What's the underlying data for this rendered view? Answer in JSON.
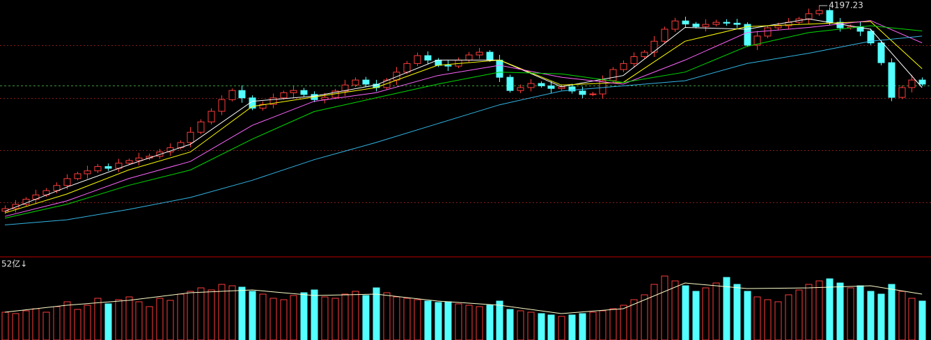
{
  "chart_data": {
    "type": "candlestick",
    "open": [
      3000,
      3015,
      3040,
      3070,
      3095,
      3120,
      3150,
      3190,
      3218,
      3235,
      3260,
      3250,
      3280,
      3295,
      3310,
      3320,
      3345,
      3370,
      3400,
      3460,
      3520,
      3582,
      3650,
      3703,
      3660,
      3600,
      3622,
      3660,
      3690,
      3703,
      3680,
      3650,
      3663,
      3700,
      3735,
      3764,
      3740,
      3720,
      3764,
      3810,
      3860,
      3906,
      3880,
      3850,
      3845,
      3880,
      3910,
      3926,
      3880,
      3780,
      3703,
      3720,
      3744,
      3730,
      3715,
      3724,
      3700,
      3680,
      3683,
      3760,
      3825,
      3860,
      3900,
      3926,
      3990,
      4060,
      4108,
      4090,
      4075,
      4088,
      4100,
      4095,
      4088,
      3967,
      4020,
      4068,
      4080,
      4100,
      4120,
      4150,
      4169,
      4100,
      4068,
      4075,
      4048,
      3980,
      3865,
      3663,
      3720,
      3764
    ],
    "high": [
      3033,
      3065,
      3082,
      3125,
      3135,
      3168,
      3215,
      3230,
      3265,
      3275,
      3278,
      3305,
      3307,
      3340,
      3335,
      3363,
      3395,
      3412,
      3490,
      3535,
      3600,
      3675,
      3715,
      3733,
      3675,
      3640,
      3685,
      3702,
      3733,
      3718,
      3698,
      3688,
      3712,
      3765,
      3779,
      3782,
      3765,
      3776,
      3840,
      3875,
      3924,
      3931,
      3892,
      3880,
      3895,
      3928,
      3951,
      3938,
      3910,
      3795,
      3738,
      3769,
      3756,
      3760,
      3739,
      3742,
      3725,
      3695,
      3790,
      3840,
      3878,
      3925,
      3938,
      4020,
      4075,
      4126,
      4133,
      4102,
      4118,
      4115,
      4118,
      4120,
      4100,
      4050,
      4083,
      4098,
      4125,
      4132,
      4180,
      4197.23,
      4187,
      4125,
      4087,
      4105,
      4063,
      3998,
      3890,
      3732,
      3794,
      3779
    ],
    "low": [
      2985,
      2993,
      3030,
      3042,
      3083,
      3105,
      3128,
      3180,
      3190,
      3223,
      3235,
      3228,
      3270,
      3267,
      3298,
      3305,
      3323,
      3360,
      3372,
      3448,
      3505,
      3560,
      3640,
      3632,
      3588,
      3585,
      3600,
      3650,
      3662,
      3668,
      3635,
      3628,
      3653,
      3672,
      3723,
      3725,
      3698,
      3710,
      3736,
      3798,
      3845,
      3858,
      3840,
      3817,
      3833,
      3865,
      3888,
      3870,
      3752,
      3691,
      3688,
      3698,
      3720,
      3687,
      3703,
      3685,
      3658,
      3670,
      3655,
      3748,
      3810,
      3838,
      3890,
      3898,
      3978,
      4045,
      4068,
      4065,
      4047,
      4076,
      4080,
      4066,
      3957,
      3939,
      4008,
      4053,
      4058,
      4090,
      4092,
      4138,
      4085,
      4046,
      4058,
      4020,
      3968,
      3850,
      3641,
      3653,
      3692,
      3728
    ],
    "close": [
      3015,
      3040,
      3070,
      3095,
      3120,
      3150,
      3190,
      3218,
      3235,
      3260,
      3250,
      3280,
      3295,
      3310,
      3320,
      3345,
      3370,
      3400,
      3460,
      3520,
      3582,
      3650,
      3703,
      3660,
      3600,
      3622,
      3660,
      3690,
      3703,
      3680,
      3650,
      3663,
      3700,
      3735,
      3764,
      3740,
      3720,
      3764,
      3810,
      3860,
      3906,
      3880,
      3850,
      3845,
      3880,
      3910,
      3926,
      3880,
      3780,
      3703,
      3720,
      3744,
      3730,
      3715,
      3724,
      3700,
      3680,
      3683,
      3760,
      3825,
      3860,
      3900,
      3926,
      3990,
      4060,
      4108,
      4090,
      4075,
      4088,
      4100,
      4095,
      4088,
      3967,
      4020,
      4068,
      4080,
      4100,
      4120,
      4150,
      4169,
      4100,
      4068,
      4075,
      4048,
      3980,
      3865,
      3663,
      3720,
      3764,
      3740
    ],
    "volume": [
      40,
      38,
      42,
      45,
      40,
      48,
      55,
      44,
      50,
      60,
      52,
      58,
      62,
      55,
      48,
      60,
      57,
      66,
      70,
      75,
      72,
      80,
      78,
      76,
      70,
      66,
      60,
      58,
      64,
      68,
      72,
      62,
      60,
      66,
      70,
      64,
      75,
      68,
      62,
      60,
      58,
      56,
      54,
      55,
      52,
      50,
      48,
      50,
      56,
      44,
      42,
      40,
      38,
      36,
      34,
      36,
      38,
      40,
      42,
      45,
      50,
      58,
      65,
      80,
      92,
      85,
      78,
      70,
      75,
      82,
      90,
      80,
      70,
      62,
      58,
      55,
      65,
      72,
      80,
      85,
      88,
      82,
      75,
      78,
      70,
      66,
      80,
      70,
      60,
      56
    ],
    "up_color": "#ff3c3c",
    "down_color": "#54ffff",
    "ylim": [
      2740,
      4230
    ],
    "yticks": [
      3050,
      3355,
      3660,
      3965
    ],
    "grid": true,
    "reference_line": 3732,
    "volume_ylim": [
      0,
      100
    ],
    "volume_label": "52亿↓",
    "ma_x": [
      0,
      6,
      12,
      18,
      24,
      30,
      36,
      42,
      48,
      54,
      60,
      66,
      72,
      78,
      84,
      89
    ],
    "moving_averages": [
      {
        "color": "#ffffff",
        "values": [
          3000,
          3140,
          3270,
          3390,
          3640,
          3670,
          3735,
          3880,
          3880,
          3725,
          3790,
          4070,
          4060,
          4120,
          4060,
          3720
        ]
      },
      {
        "color": "#ffff00",
        "values": [
          2990,
          3100,
          3240,
          3345,
          3610,
          3665,
          3720,
          3850,
          3880,
          3735,
          3750,
          3990,
          4075,
          4090,
          4105,
          3830
        ]
      },
      {
        "color": "#ff66ff",
        "values": [
          2970,
          3060,
          3190,
          3290,
          3500,
          3640,
          3690,
          3790,
          3850,
          3780,
          3740,
          3880,
          4040,
          4070,
          4110,
          3980
        ]
      },
      {
        "color": "#00dd00",
        "values": [
          2960,
          3040,
          3150,
          3240,
          3420,
          3580,
          3660,
          3740,
          3810,
          3800,
          3750,
          3810,
          3960,
          4040,
          4080,
          4050
        ]
      },
      {
        "color": "#33b5e5",
        "values": [
          2920,
          2950,
          3010,
          3080,
          3180,
          3300,
          3400,
          3510,
          3620,
          3700,
          3730,
          3760,
          3860,
          3920,
          3990,
          4020
        ]
      }
    ],
    "volume_ma": {
      "color": "#ffffcc",
      "values": [
        40,
        50,
        57,
        68,
        72,
        64,
        66,
        56,
        50,
        38,
        45,
        82,
        74,
        75,
        78,
        66
      ]
    }
  }
}
